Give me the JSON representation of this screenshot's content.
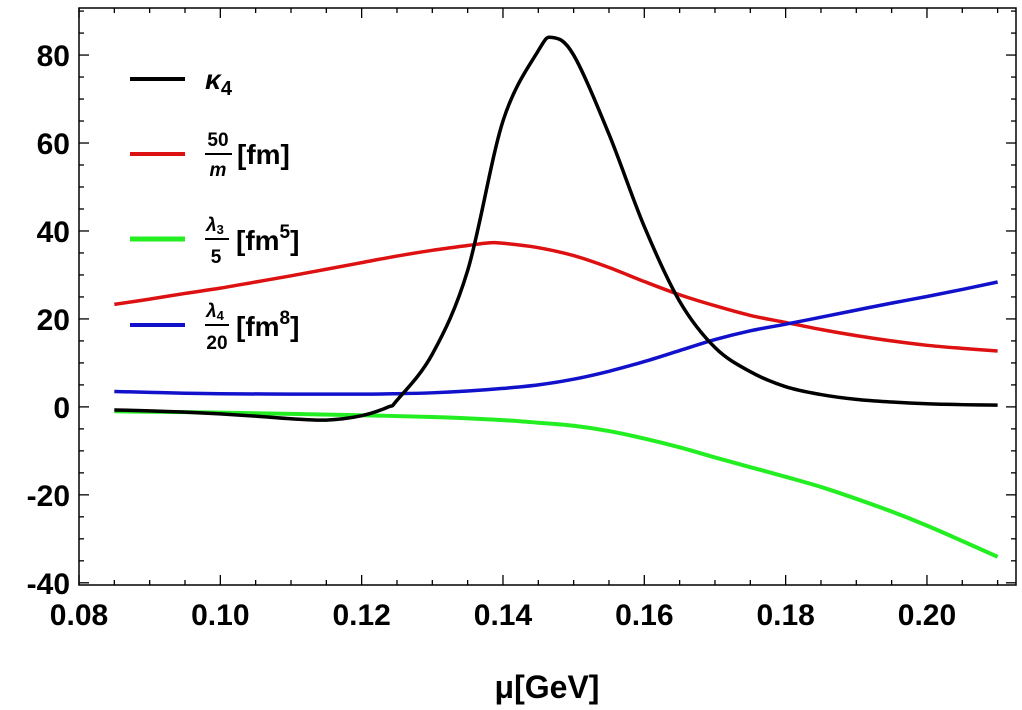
{
  "chart_data": {
    "type": "line",
    "title": "",
    "xlabel": "μ[GeV]",
    "ylabel": "",
    "xlim": [
      0.08,
      0.2126
    ],
    "ylim": [
      -40.5,
      90.7
    ],
    "grid": false,
    "legend_position": "top-left",
    "x_ticks": [
      0.08,
      0.1,
      0.12,
      0.14,
      0.16,
      0.18,
      0.2
    ],
    "x_tick_labels": [
      "0.08",
      "0.10",
      "0.12",
      "0.14",
      "0.16",
      "0.18",
      "0.20"
    ],
    "y_ticks": [
      -40,
      -20,
      0,
      20,
      40,
      60,
      80
    ],
    "y_tick_labels": [
      "-40",
      "-20",
      "0",
      "20",
      "40",
      "60",
      "80"
    ],
    "series": [
      {
        "name": "κ4",
        "legend": {
          "main": "κ",
          "sub": "4"
        },
        "color": "#000000",
        "x": [
          0.085,
          0.09,
          0.095,
          0.1,
          0.105,
          0.11,
          0.115,
          0.12,
          0.1238,
          0.125,
          0.13,
          0.135,
          0.14,
          0.145,
          0.147,
          0.15,
          0.155,
          0.16,
          0.165,
          0.17,
          0.175,
          0.18,
          0.185,
          0.19,
          0.195,
          0.2,
          0.205,
          0.21
        ],
        "y": [
          -0.7,
          -0.9,
          -1.2,
          -1.6,
          -2.1,
          -2.7,
          -3.0,
          -2.0,
          0,
          1.5,
          12,
          31,
          65,
          81,
          84,
          80,
          62,
          41,
          24,
          13.5,
          8,
          4.6,
          2.8,
          1.7,
          1.1,
          0.7,
          0.5,
          0.4
        ]
      },
      {
        "name": "50/m [fm]",
        "legend": {
          "num": "50",
          "den": "m",
          "unit": "[fm]",
          "sup": ""
        },
        "color": "#dd1111",
        "x": [
          0.085,
          0.09,
          0.095,
          0.1,
          0.105,
          0.11,
          0.115,
          0.12,
          0.125,
          0.13,
          0.135,
          0.138,
          0.14,
          0.145,
          0.15,
          0.155,
          0.16,
          0.165,
          0.17,
          0.175,
          0.18,
          0.185,
          0.19,
          0.195,
          0.2,
          0.205,
          0.21
        ],
        "y": [
          23.3,
          24.5,
          25.8,
          27,
          28.4,
          29.8,
          31.3,
          32.8,
          34.3,
          35.6,
          36.7,
          37.3,
          37.2,
          36.2,
          34.4,
          31.7,
          28.5,
          25.5,
          23,
          20.8,
          19.2,
          17.6,
          16.2,
          15,
          14,
          13.3,
          12.7
        ]
      },
      {
        "name": "λ3/5 [fm5]",
        "legend": {
          "num": "λ",
          "num_sub": "3",
          "den": "5",
          "unit": "[fm",
          "sup": "5",
          "close": "]"
        },
        "color": "#22ee22",
        "x": [
          0.085,
          0.09,
          0.1,
          0.11,
          0.12,
          0.13,
          0.135,
          0.14,
          0.145,
          0.15,
          0.155,
          0.16,
          0.165,
          0.17,
          0.175,
          0.18,
          0.185,
          0.19,
          0.195,
          0.2,
          0.205,
          0.21
        ],
        "y": [
          -1,
          -1.1,
          -1.3,
          -1.6,
          -1.9,
          -2.3,
          -2.6,
          -3.0,
          -3.6,
          -4.3,
          -5.5,
          -7.2,
          -9.2,
          -11.5,
          -13.7,
          -15.9,
          -18.2,
          -20.9,
          -23.8,
          -27,
          -30.5,
          -34.1
        ]
      },
      {
        "name": "λ4/20 [fm8]",
        "legend": {
          "num": "λ",
          "num_sub": "4",
          "den": "20",
          "unit": "[fm",
          "sup": "8",
          "close": "]"
        },
        "color": "#1111cc",
        "x": [
          0.085,
          0.09,
          0.095,
          0.1,
          0.11,
          0.12,
          0.125,
          0.13,
          0.135,
          0.14,
          0.145,
          0.15,
          0.155,
          0.16,
          0.165,
          0.17,
          0.175,
          0.18,
          0.185,
          0.19,
          0.195,
          0.2,
          0.205,
          0.21
        ],
        "y": [
          3.5,
          3.3,
          3.1,
          3.0,
          2.9,
          2.9,
          3.0,
          3.2,
          3.6,
          4.2,
          5.0,
          6.3,
          8.1,
          10.3,
          12.8,
          15.3,
          17.3,
          18.8,
          20.4,
          22,
          23.6,
          25.1,
          26.7,
          28.4
        ]
      }
    ]
  }
}
